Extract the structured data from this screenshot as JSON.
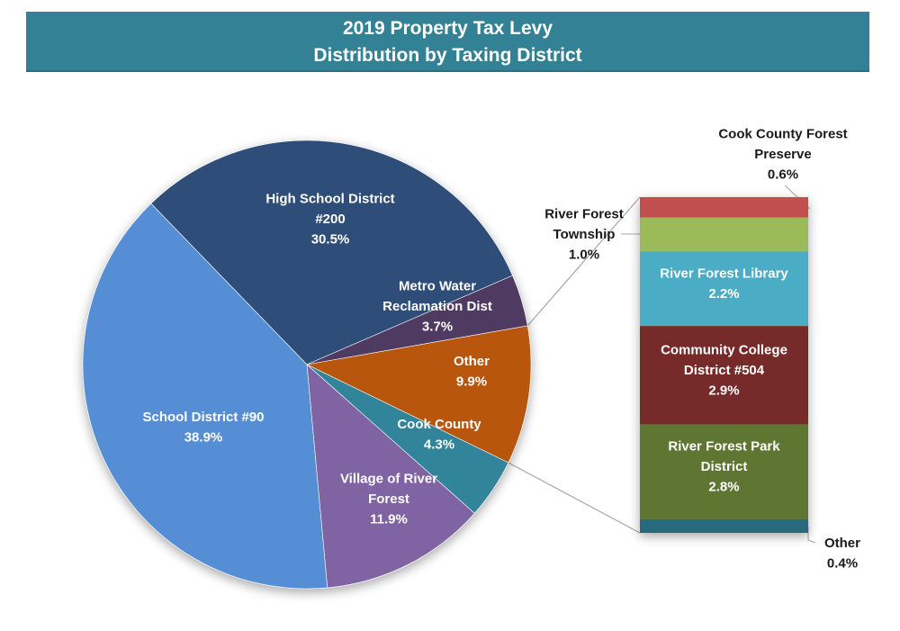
{
  "title": {
    "line1": "2019 Property Tax Levy",
    "line2": "Distribution by Taxing District"
  },
  "chart_data": {
    "type": "pie",
    "subtype": "bar-of-pie",
    "title": "2019 Property Tax Levy Distribution by Taxing District",
    "unit": "%",
    "pie": [
      {
        "label": "High School District #200",
        "lines": [
          "High School District",
          "#200",
          "30.5%"
        ],
        "value": 30.5,
        "color": "#2e4e78"
      },
      {
        "label": "Metro Water Reclamation Dist",
        "lines": [
          "Metro Water",
          "Reclamation Dist",
          "3.7%"
        ],
        "value": 3.7,
        "color": "#4f3a62"
      },
      {
        "label": "Other",
        "lines": [
          "Other",
          "9.9%"
        ],
        "value": 9.9,
        "color": "#b9570c"
      },
      {
        "label": "Cook County",
        "lines": [
          "Cook County",
          "4.3%"
        ],
        "value": 4.3,
        "color": "#31849b"
      },
      {
        "label": "Village of River Forest",
        "lines": [
          "Village of River",
          "Forest",
          "11.9%"
        ],
        "value": 11.9,
        "color": "#8064a2"
      },
      {
        "label": "School District #90",
        "lines": [
          "School District #90",
          "38.9%"
        ],
        "value": 38.9,
        "color": "#558ed5"
      }
    ],
    "bar_breakdown_of": "Other",
    "bar": [
      {
        "label": "Cook County Forest Preserve",
        "lines": [
          "Cook County Forest",
          "Preserve",
          "0.6%"
        ],
        "value": 0.6,
        "color": "#c0504d",
        "label_outside": true
      },
      {
        "label": "River Forest Township",
        "lines": [
          "River Forest",
          "Township",
          "1.0%"
        ],
        "value": 1.0,
        "color": "#9bbb59",
        "label_outside": true
      },
      {
        "label": "River Forest Library",
        "lines": [
          "River Forest Library",
          "2.2%"
        ],
        "value": 2.2,
        "color": "#4bacc6",
        "label_outside": false
      },
      {
        "label": "Community College District #504",
        "lines": [
          "Community College",
          "District #504",
          "2.9%"
        ],
        "value": 2.9,
        "color": "#772c2a",
        "label_outside": false
      },
      {
        "label": "River Forest Park District",
        "lines": [
          "River Forest Park",
          "District",
          "2.8%"
        ],
        "value": 2.8,
        "color": "#5f7530",
        "label_outside": false
      },
      {
        "label": "Other",
        "lines": [
          "Other",
          "0.4%"
        ],
        "value": 0.4,
        "color": "#276a7c",
        "label_outside": true
      }
    ]
  }
}
